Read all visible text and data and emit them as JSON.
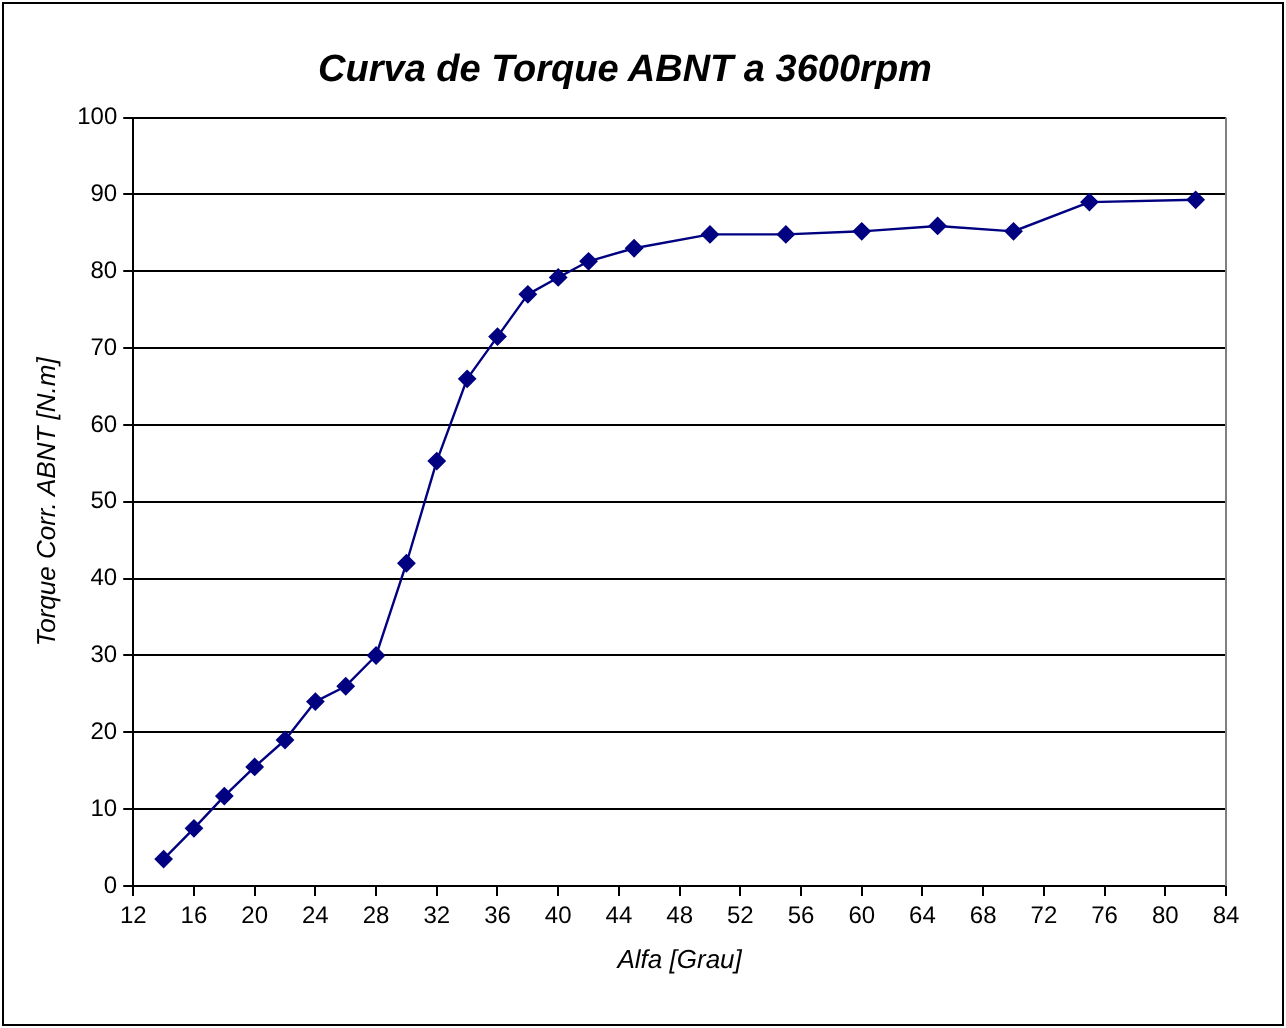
{
  "chart_data": {
    "type": "line",
    "title": "Curva de Torque ABNT a 3600rpm",
    "xlabel": "Alfa [Grau]",
    "ylabel": "Torque Corr. ABNT [N.m]",
    "x": [
      14,
      16,
      18,
      20,
      22,
      24,
      26,
      28,
      30,
      32,
      34,
      36,
      38,
      40,
      42,
      45,
      50,
      55,
      60,
      65,
      70,
      75,
      82
    ],
    "series": [
      {
        "color": "#000080",
        "values": [
          3.5,
          7.5,
          11.7,
          15.5,
          19,
          24,
          26,
          30,
          42,
          55.3,
          66,
          71.5,
          77,
          79.2,
          81.3,
          83,
          84.8,
          84.8,
          85.2,
          85.9,
          85.2,
          89,
          89.3
        ]
      }
    ],
    "xlim": [
      12,
      84
    ],
    "xticks": [
      12,
      16,
      20,
      24,
      28,
      32,
      36,
      40,
      44,
      48,
      52,
      56,
      60,
      64,
      68,
      72,
      76,
      80,
      84
    ],
    "ylim": [
      0,
      100
    ],
    "yticks": [
      0,
      10,
      20,
      30,
      40,
      50,
      60,
      70,
      80,
      90,
      100
    ],
    "grid": "y",
    "legend": false,
    "marker": "diamond",
    "line_style": "solid"
  }
}
